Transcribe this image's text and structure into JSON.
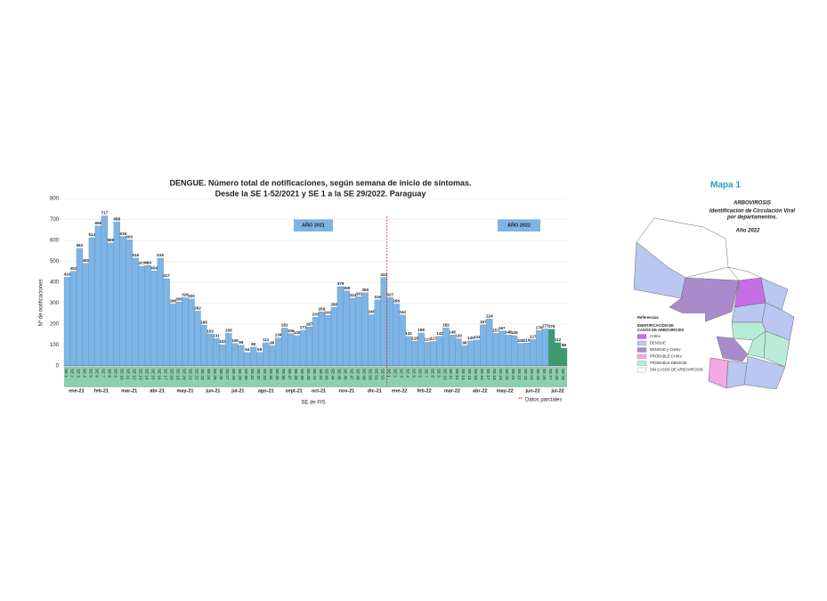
{
  "chart_data": {
    "type": "bar",
    "title": "DENGUE. Número total de notificaciones, según semana de inicio de síntomas.",
    "subtitle": "Desde la SE 1-52/2021 y SE 1 a la SE 29/2022. Paraguay",
    "y_label": "Nº de notificaciones",
    "x_label": "SE de FIS",
    "year_labels": [
      "AÑO 2021",
      "AÑO 2022"
    ],
    "partial_marker": "**",
    "partial_note": "Datos parciales",
    "categories": [
      "SE 1",
      "SE 2",
      "SE 3",
      "SE 4",
      "SE 5",
      "SE 6",
      "SE 7",
      "SE 8",
      "SE 9",
      "SE 10",
      "SE 11",
      "SE 12",
      "SE 13",
      "SE 14",
      "SE 15",
      "SE 16",
      "SE 17",
      "SE 18",
      "SE 19",
      "SE 20",
      "SE 21",
      "SE 22",
      "SE 23",
      "SE 24",
      "SE 25",
      "SE 26",
      "SE 27",
      "SE 28",
      "SE 29",
      "SE 30",
      "SE 31",
      "SE 32",
      "SE 33",
      "SE 34",
      "SE 35",
      "SE 36",
      "SE 37",
      "SE 38",
      "SE 39",
      "SE 40",
      "SE 41",
      "SE 42",
      "SE 43",
      "SE 44",
      "SE 45",
      "SE 46",
      "SE 47",
      "SE 48",
      "SE 49",
      "SE 50",
      "SE 51",
      "SE 52",
      "SE 1",
      "SE 2",
      "SE 3",
      "SE 4",
      "SE 5",
      "SE 6",
      "SE 7",
      "SE 8",
      "SE 9",
      "SE 10",
      "SE 11",
      "SE 12",
      "SE 13",
      "SE 14",
      "SE 15",
      "SE 16",
      "SE 17",
      "SE 18",
      "SE 19",
      "SE 20",
      "SE 21",
      "SE 22",
      "SE 23",
      "SE 24",
      "SE 25",
      "SE 26",
      "SE 27",
      "SE 28",
      "SE 29"
    ],
    "values": [
      424,
      452,
      562,
      491,
      613,
      669,
      717,
      588,
      688,
      619,
      603,
      516,
      477,
      480,
      454,
      515,
      417,
      296,
      306,
      326,
      320,
      262,
      195,
      153,
      131,
      102,
      156,
      108,
      99,
      64,
      90,
      65,
      111,
      96,
      134,
      181,
      155,
      145,
      171,
      187,
      233,
      259,
      241,
      280,
      379,
      359,
      324,
      331,
      350,
      245,
      316,
      423,
      327,
      296,
      244,
      141,
      118,
      158,
      113,
      117,
      142,
      182,
      148,
      130,
      96,
      120,
      124,
      197,
      224,
      157,
      167,
      148,
      145,
      108,
      110,
      127,
      170,
      177,
      176,
      112,
      85
    ],
    "color": "#7db4e4",
    "partial_color": "#3e9a6c",
    "partial_bars": [
      78,
      79,
      80
    ],
    "month_labels": [
      "ene-21",
      "feb-21",
      "mar-21",
      "abr-21",
      "may-21",
      "jun-21",
      "jul-21",
      "ago-21",
      "sept-21",
      "oct-21",
      "nov-21",
      "dic-21",
      "ene-22",
      "feb-22",
      "mar-22",
      "abr-22",
      "may-22",
      "jun-22",
      "jul-22"
    ],
    "ylim": [
      0,
      800
    ],
    "yticks": [
      0,
      100,
      200,
      300,
      400,
      500,
      600,
      700,
      800
    ],
    "grid": true
  },
  "map": {
    "title": "Mapa 1",
    "heading": "ARBOVIROSIS",
    "subheading": [
      "Identificación de Circulación Viral",
      "por departamentos."
    ],
    "year": "Año 2022",
    "legend_title": "Referencias",
    "legend_subtitle": [
      "IDENTIFICACIÓN DE",
      "CASOS DE ARBOVIROSIS"
    ],
    "legend": [
      {
        "name": "CHIKv",
        "color": "#c46ee6"
      },
      {
        "name": "DENGUE",
        "color": "#b9c7f1"
      },
      {
        "name": "DENGUE y CHIKv",
        "color": "#a98bcb"
      },
      {
        "name": "PROBABLE CHIKv",
        "color": "#f4a8e6"
      },
      {
        "name": "PROBABLE DENGUE",
        "color": "#b8ecd7"
      },
      {
        "name": "SIN CASOS DE ARBOVIROSIS",
        "color": "#ffffff"
      }
    ]
  }
}
